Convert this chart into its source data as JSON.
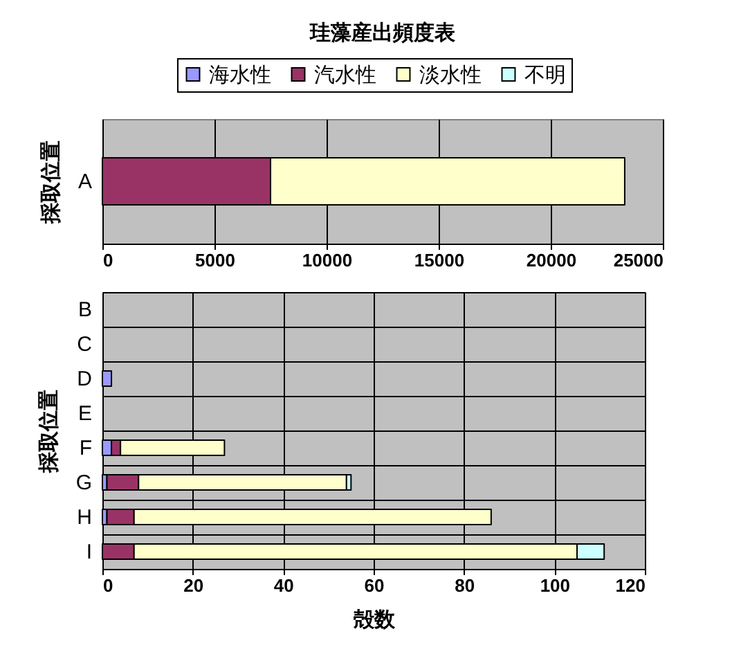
{
  "chart_data": [
    {
      "type": "bar",
      "orientation": "horizontal",
      "stacked": true,
      "title": "珪藻産出頻度表",
      "ylabel": "採取位置",
      "categories": [
        "A"
      ],
      "series": [
        {
          "name": "海水性",
          "color": "#9999ff",
          "values": [
            null
          ]
        },
        {
          "name": "汽水性",
          "color": "#993366",
          "values": [
            7500
          ]
        },
        {
          "name": "淡水性",
          "color": "#ffffcc",
          "values": [
            15800
          ]
        },
        {
          "name": "不明",
          "color": "#ccffff",
          "values": [
            null
          ]
        }
      ],
      "xlim": [
        0,
        25000
      ],
      "xticks": [
        0,
        5000,
        10000,
        15000,
        20000,
        25000
      ],
      "grid": "x",
      "legend": "top"
    },
    {
      "type": "bar",
      "orientation": "horizontal",
      "stacked": true,
      "xlabel": "殻数",
      "ylabel": "採取位置",
      "categories": [
        "B",
        "C",
        "D",
        "E",
        "F",
        "G",
        "H",
        "I"
      ],
      "series": [
        {
          "color": "#9999ff",
          "values": [
            null,
            null,
            2,
            null,
            2,
            1,
            1,
            null
          ]
        },
        {
          "color": "#993366",
          "values": [
            null,
            null,
            null,
            null,
            2,
            7,
            6,
            7
          ]
        },
        {
          "color": "#ffffcc",
          "values": [
            null,
            null,
            null,
            null,
            23,
            46,
            79,
            98
          ]
        },
        {
          "color": "#ccffff",
          "values": [
            null,
            null,
            null,
            null,
            null,
            1,
            null,
            6
          ]
        }
      ],
      "xlim": [
        0,
        120
      ],
      "xticks": [
        0,
        20,
        40,
        60,
        80,
        100,
        120
      ],
      "grid": true
    }
  ]
}
